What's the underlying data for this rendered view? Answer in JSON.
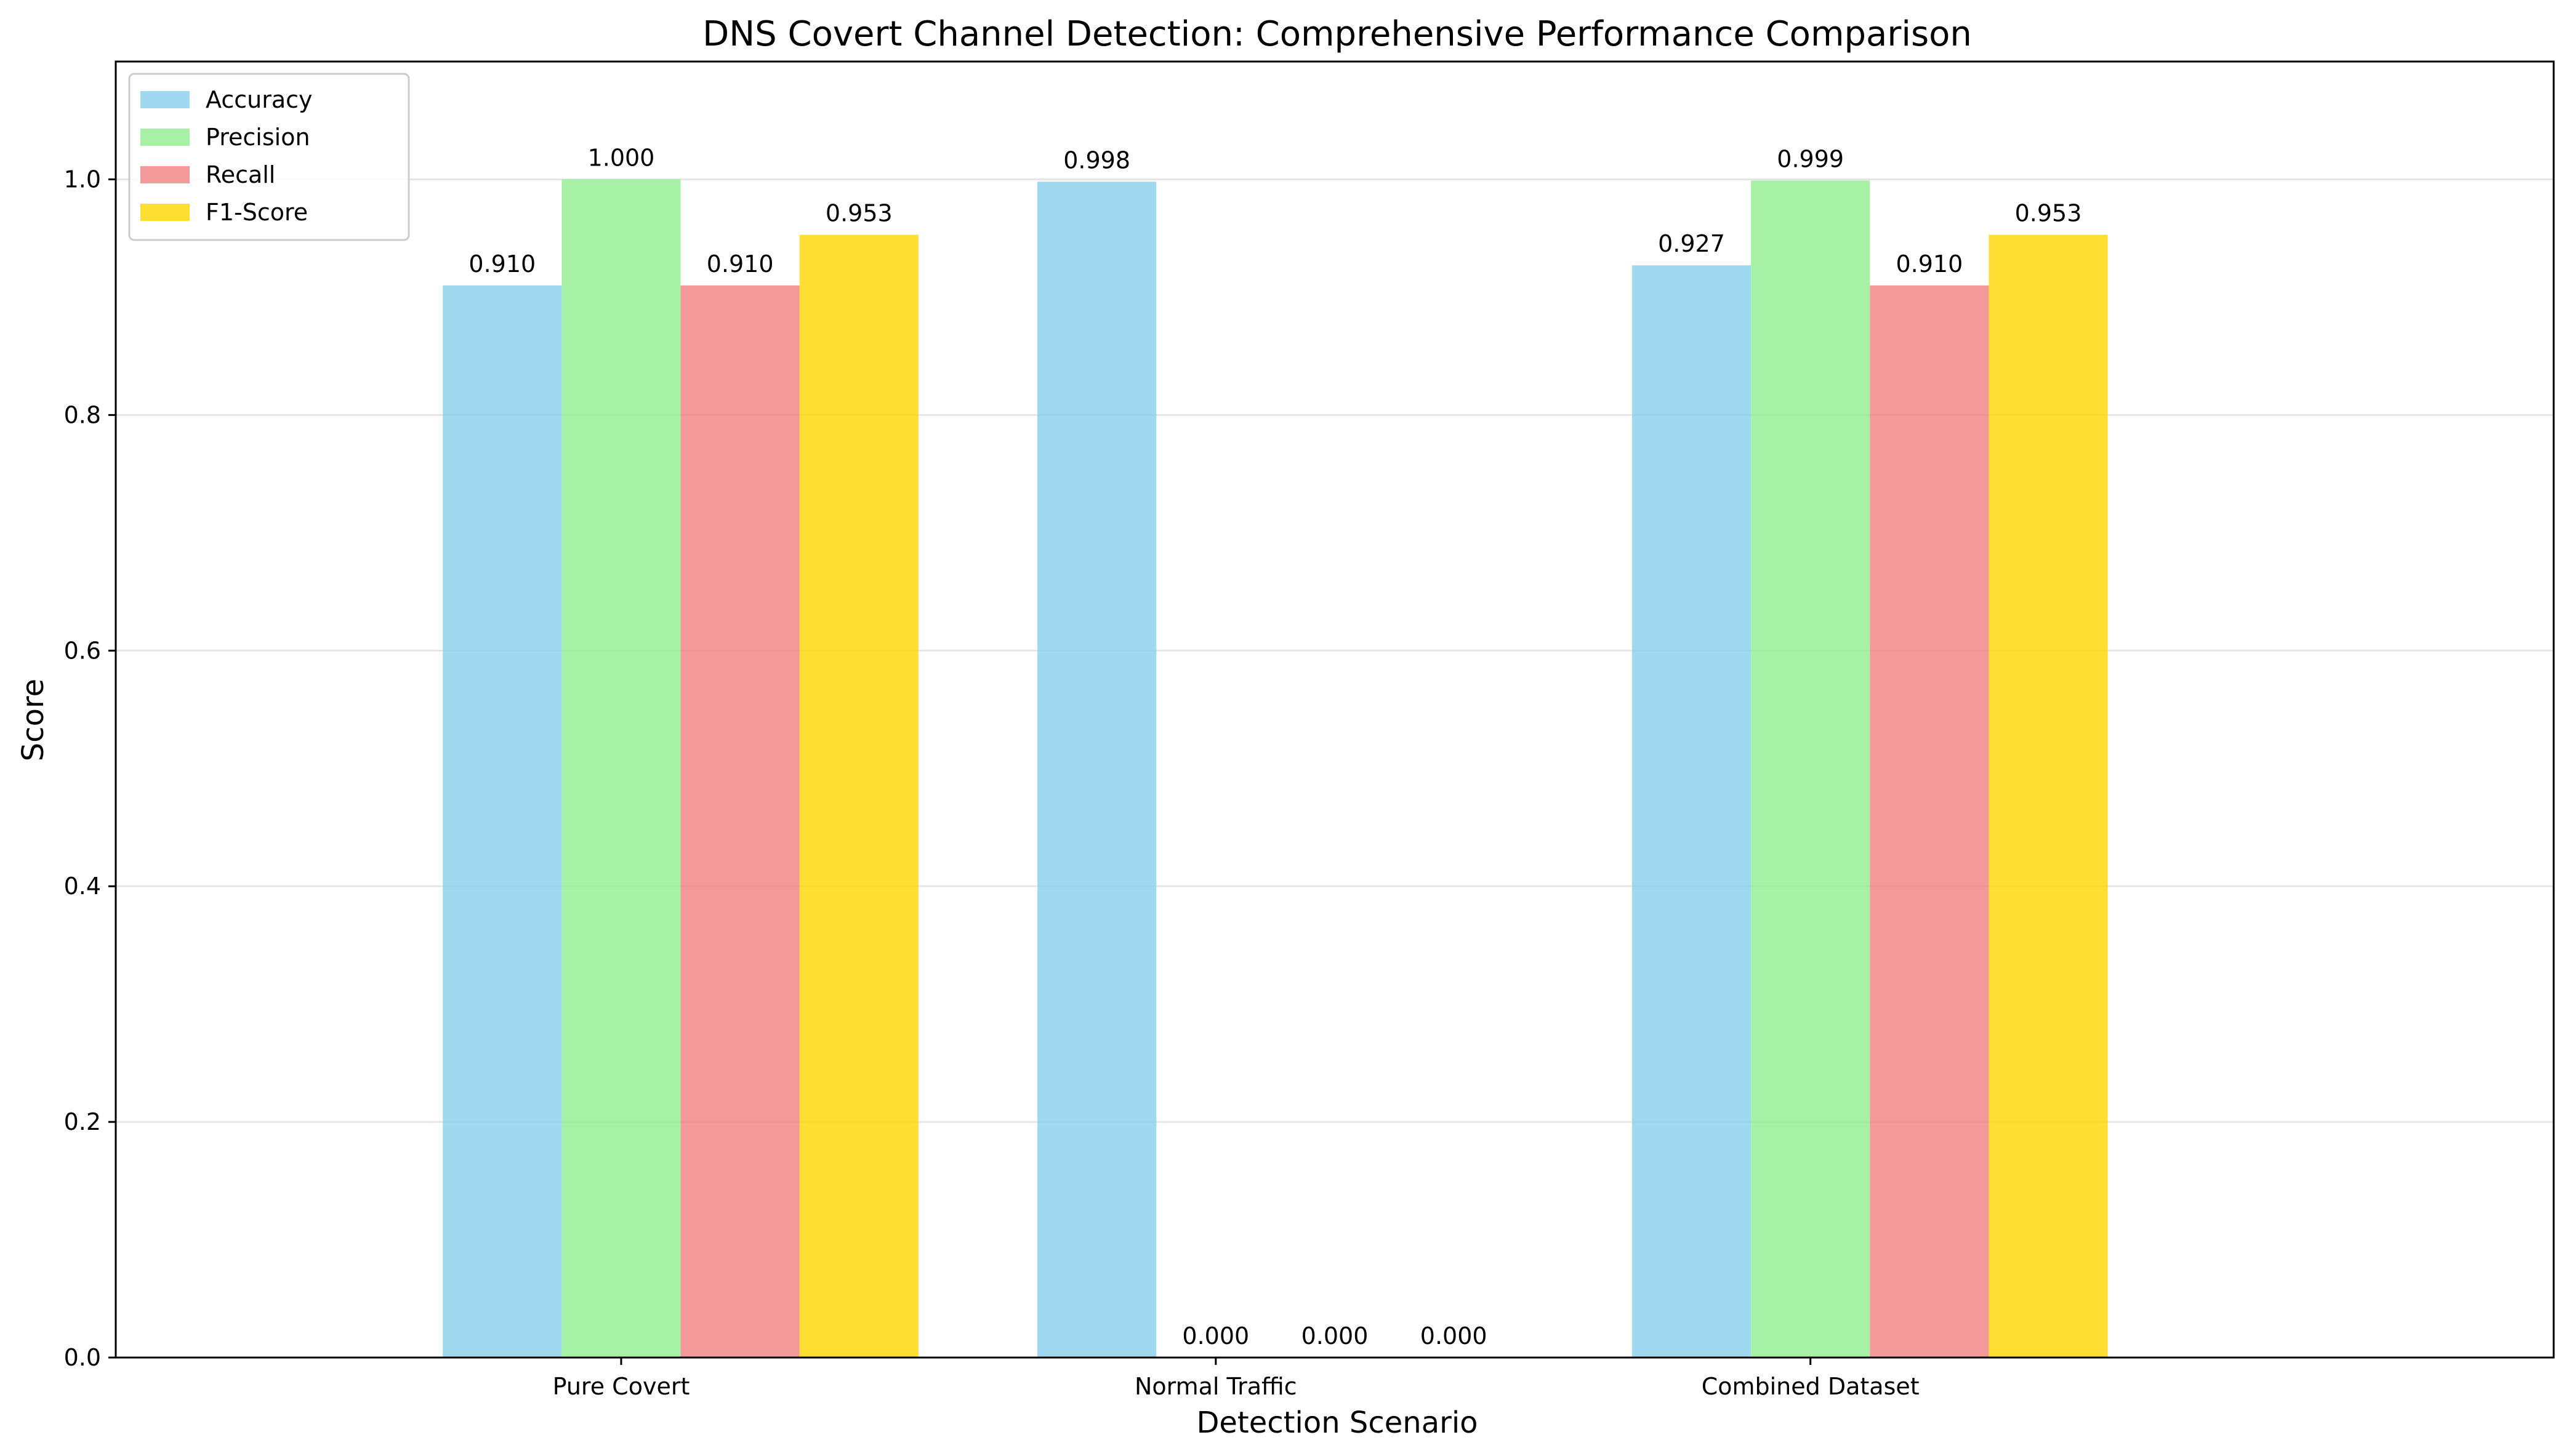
{
  "chart_data": {
    "type": "bar",
    "title": "DNS Covert Channel Detection: Comprehensive Performance Comparison",
    "xlabel": "Detection Scenario",
    "ylabel": "Score",
    "categories": [
      "Pure Covert",
      "Normal Traffic",
      "Combined Dataset"
    ],
    "ylim": [
      0,
      1.1
    ],
    "yticks": [
      0.0,
      0.2,
      0.4,
      0.6,
      0.8,
      1.0
    ],
    "ytick_labels": [
      "0.0",
      "0.2",
      "0.4",
      "0.6",
      "0.8",
      "1.0"
    ],
    "grid": "y",
    "legend_position": "top-left",
    "series": [
      {
        "name": "Accuracy",
        "color": "#87ceeb",
        "values": [
          0.91,
          0.998,
          0.927
        ],
        "labels": [
          "0.910",
          "0.998",
          "0.927"
        ]
      },
      {
        "name": "Precision",
        "color": "#90ee90",
        "values": [
          1.0,
          0.0,
          0.999
        ],
        "labels": [
          "1.000",
          "0.000",
          "0.999"
        ]
      },
      {
        "name": "Recall",
        "color": "#f08080",
        "values": [
          0.91,
          0.0,
          0.91
        ],
        "labels": [
          "0.910",
          "0.000",
          "0.910"
        ]
      },
      {
        "name": "F1-Score",
        "color": "#ffd700",
        "values": [
          0.953,
          0.0,
          0.953
        ],
        "labels": [
          "0.953",
          "0.000",
          "0.953"
        ]
      }
    ],
    "bar_opacity": 0.8
  }
}
